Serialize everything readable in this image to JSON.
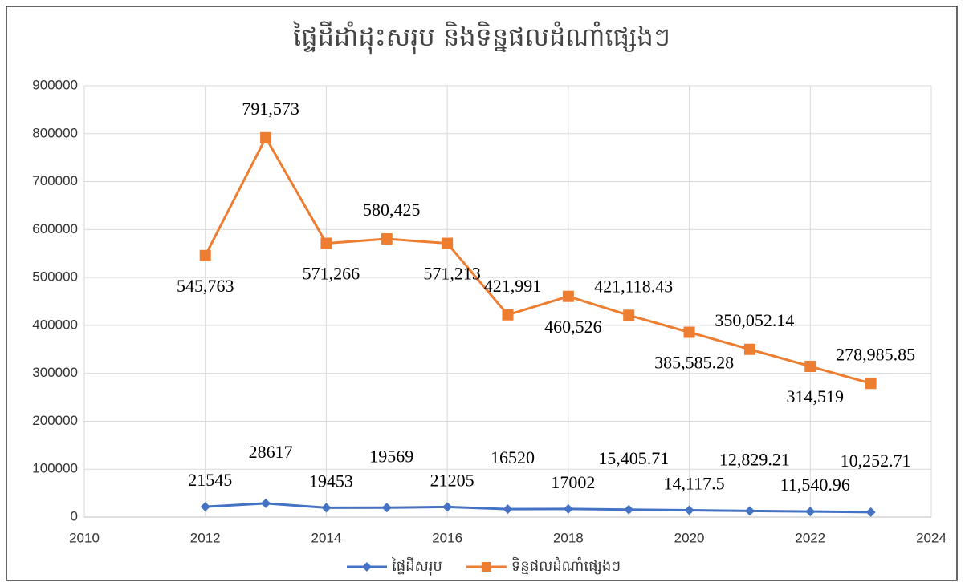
{
  "chart_data": {
    "type": "line",
    "title": "ផ្ទៃដីដាំដុះសរុប និងទិន្នផលដំណាំផ្សេងៗ",
    "x": [
      2012,
      2013,
      2014,
      2015,
      2016,
      2017,
      2018,
      2019,
      2020,
      2021,
      2022,
      2023
    ],
    "series": [
      {
        "name": "ផ្ទៃដីសរុប",
        "color": "#4472c4",
        "marker": "diamond",
        "values": [
          21545,
          28617,
          19453,
          19569,
          21205,
          16520,
          17002,
          15405.71,
          14117.5,
          12829.21,
          11540.96,
          10252.71
        ],
        "value_labels": [
          "21545",
          "28617",
          "19453",
          "19569",
          "21205",
          "16520",
          "17002",
          "15,405.71",
          "14,117.5",
          "12,829.21",
          "11,540.96",
          "10,252.71"
        ]
      },
      {
        "name": "ទិន្នផលដំណាំផ្សេងៗ",
        "color": "#ed7d31",
        "marker": "square",
        "values": [
          545763,
          791573,
          571266,
          580425,
          571213,
          421991,
          460526,
          421118.43,
          385585.28,
          350052.14,
          314519,
          278985.85
        ],
        "value_labels": [
          "545,763",
          "791,573",
          "571,266",
          "580,425",
          "571,213",
          "421,991",
          "460,526",
          "421,118.43",
          "385,585.28",
          "350,052.14",
          "314,519",
          "278,985.85"
        ]
      }
    ],
    "xlim": [
      2010,
      2024
    ],
    "xticks": [
      2010,
      2012,
      2014,
      2016,
      2018,
      2020,
      2022,
      2024
    ],
    "ylim": [
      0,
      900000
    ],
    "yticks": [
      0,
      100000,
      200000,
      300000,
      400000,
      500000,
      600000,
      700000,
      800000,
      900000
    ],
    "grid": true,
    "legend": "bottom"
  }
}
